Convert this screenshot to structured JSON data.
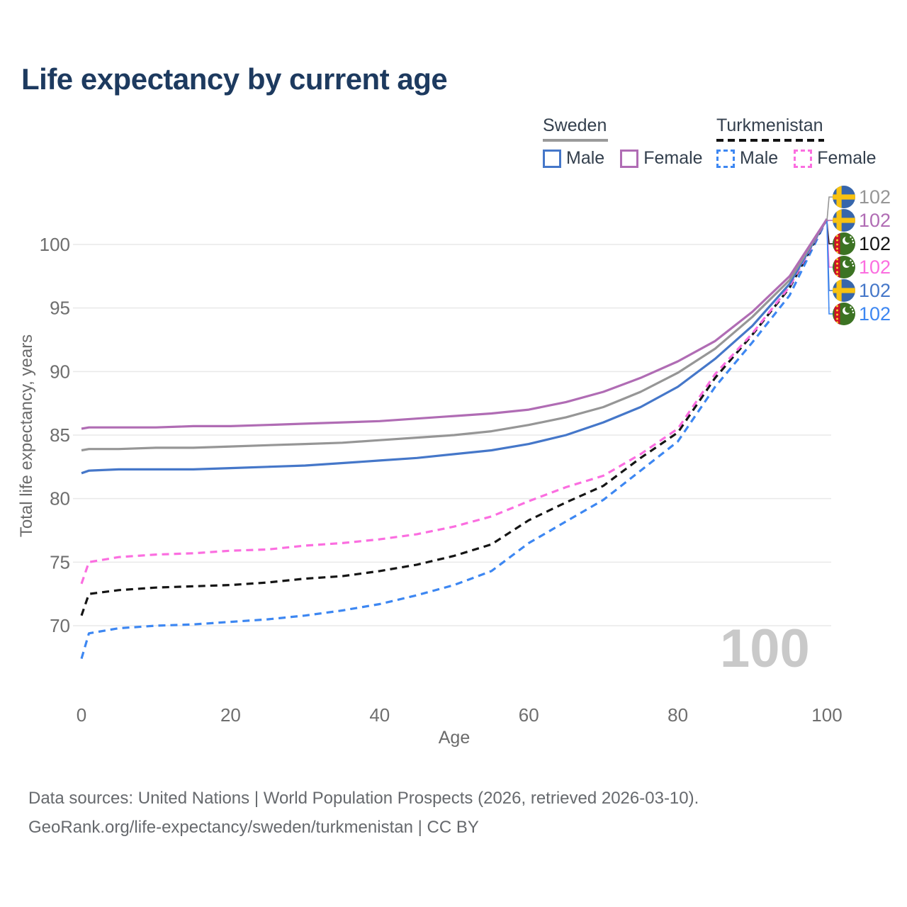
{
  "title": "Life expectancy by current age",
  "legend": {
    "groups": [
      {
        "name": "Sweden",
        "line_style": "solid",
        "underline_color": "#9a9a9a",
        "items": [
          {
            "label": "Male",
            "color": "#4577c9",
            "dashed": false
          },
          {
            "label": "Female",
            "color": "#b06cb4",
            "dashed": false
          }
        ]
      },
      {
        "name": "Turkmenistan",
        "line_style": "dashed",
        "underline_color": "#131313",
        "items": [
          {
            "label": "Male",
            "color": "#3d87f2",
            "dashed": true
          },
          {
            "label": "Female",
            "color": "#fb6ee0",
            "dashed": true
          }
        ]
      }
    ]
  },
  "chart_data": {
    "type": "line",
    "title": "Life expectancy by current age",
    "xlabel": "Age",
    "ylabel": "Total life expectancy, years",
    "x": [
      0,
      1,
      5,
      10,
      15,
      20,
      25,
      30,
      35,
      40,
      45,
      50,
      55,
      60,
      65,
      70,
      75,
      80,
      85,
      90,
      95,
      100
    ],
    "series": [
      {
        "name": "Turkmenistan Male",
        "country": "Turkmenistan",
        "sex": "male",
        "color": "#3d87f2",
        "dashed": true,
        "values": [
          67.4,
          69.4,
          69.8,
          70.0,
          70.1,
          70.3,
          70.5,
          70.8,
          71.2,
          71.7,
          72.4,
          73.2,
          74.3,
          76.5,
          78.2,
          79.9,
          82.2,
          84.5,
          88.8,
          92.3,
          96.0,
          102
        ]
      },
      {
        "name": "Turkmenistan Total",
        "country": "Turkmenistan",
        "sex": "both",
        "color": "#151515",
        "dashed": true,
        "values": [
          70.8,
          72.5,
          72.8,
          73.0,
          73.1,
          73.2,
          73.4,
          73.7,
          73.9,
          74.3,
          74.8,
          75.5,
          76.4,
          78.3,
          79.7,
          81.0,
          83.2,
          85.2,
          89.5,
          92.9,
          96.6,
          102
        ]
      },
      {
        "name": "Turkmenistan Female",
        "country": "Turkmenistan",
        "sex": "female",
        "color": "#fb6ee0",
        "dashed": true,
        "values": [
          73.3,
          75.0,
          75.4,
          75.6,
          75.7,
          75.9,
          76.0,
          76.3,
          76.5,
          76.8,
          77.2,
          77.8,
          78.6,
          79.8,
          80.9,
          81.8,
          83.5,
          85.5,
          89.8,
          93.0,
          96.7,
          102
        ]
      },
      {
        "name": "Sweden Male",
        "country": "Sweden",
        "sex": "male",
        "color": "#4577c9",
        "dashed": false,
        "values": [
          82.0,
          82.2,
          82.3,
          82.3,
          82.3,
          82.4,
          82.5,
          82.6,
          82.8,
          83.0,
          83.2,
          83.5,
          83.8,
          84.3,
          85.0,
          86.0,
          87.2,
          88.8,
          91.0,
          93.6,
          96.9,
          102
        ]
      },
      {
        "name": "Sweden Total",
        "country": "Sweden",
        "sex": "both",
        "color": "#969696",
        "dashed": false,
        "values": [
          83.8,
          83.9,
          83.9,
          84.0,
          84.0,
          84.1,
          84.2,
          84.3,
          84.4,
          84.6,
          84.8,
          85.0,
          85.3,
          85.8,
          86.4,
          87.2,
          88.4,
          89.9,
          91.8,
          94.3,
          97.2,
          102
        ]
      },
      {
        "name": "Sweden Female",
        "country": "Sweden",
        "sex": "female",
        "color": "#b06cb4",
        "dashed": false,
        "values": [
          85.5,
          85.6,
          85.6,
          85.6,
          85.7,
          85.7,
          85.8,
          85.9,
          86.0,
          86.1,
          86.3,
          86.5,
          86.7,
          87.0,
          87.6,
          88.4,
          89.5,
          90.8,
          92.4,
          94.7,
          97.5,
          102
        ]
      }
    ],
    "xticks": [
      0,
      20,
      40,
      60,
      80,
      100
    ],
    "yticks": [
      70,
      75,
      80,
      85,
      90,
      95,
      100
    ],
    "xlim": [
      0,
      100
    ],
    "ylim": [
      66,
      103
    ],
    "grid": "horizontal",
    "legend_position": "top-right"
  },
  "end_labels": [
    {
      "flag": "sweden",
      "value": "102",
      "color": "#969696"
    },
    {
      "flag": "sweden",
      "value": "102",
      "color": "#b06cb4"
    },
    {
      "flag": "turkmenistan",
      "value": "102",
      "color": "#151515"
    },
    {
      "flag": "turkmenistan",
      "value": "102",
      "color": "#fb6ee0"
    },
    {
      "flag": "sweden",
      "value": "102",
      "color": "#4577c9"
    },
    {
      "flag": "turkmenistan",
      "value": "102",
      "color": "#3d87f2"
    }
  ],
  "watermark": "100",
  "footer": {
    "line1": "Data sources: United Nations | World Population Prospects (2026, retrieved 2026-03-10).",
    "line2": "GeoRank.org/life-expectancy/sweden/turkmenistan | CC BY"
  }
}
